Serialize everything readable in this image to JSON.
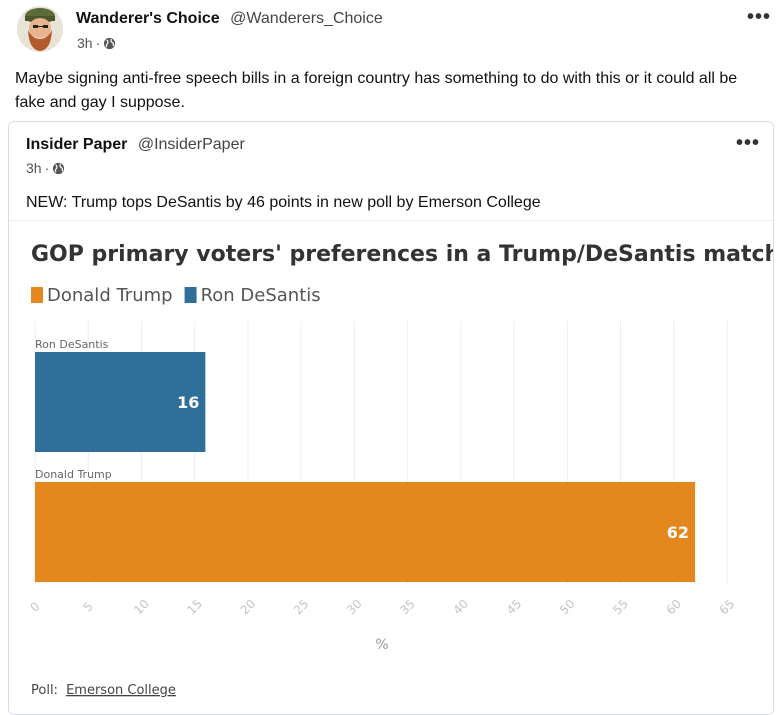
{
  "post": {
    "author_name": "Wanderer's Choice",
    "author_handle": "@Wanderers_Choice",
    "time": "3h",
    "separator": "·",
    "visibility_icon": "globe-icon",
    "more_label": "•••",
    "text": "Maybe signing anti-free speech bills in a foreign country has something to do with this or it could all be fake and gay I suppose."
  },
  "quote": {
    "author_name": "Insider Paper",
    "author_handle": "@InsiderPaper",
    "time": "3h",
    "separator": "·",
    "visibility_icon": "globe-icon",
    "more_label": "•••",
    "text": "NEW: Trump tops DeSantis by 46 points in new poll by Emerson College"
  },
  "chart_data": {
    "type": "bar",
    "orientation": "horizontal",
    "title": "GOP primary voters' preferences in a Trump/DeSantis match-up",
    "legend": [
      {
        "name": "Donald Trump",
        "color": "#e4881e"
      },
      {
        "name": "Ron DeSantis",
        "color": "#2f6f9a"
      }
    ],
    "legend_position": "top-left",
    "categories": [
      "Ron DeSantis",
      "Donald Trump"
    ],
    "values": [
      16,
      62
    ],
    "value_labels": [
      "16",
      "62"
    ],
    "colors": [
      "#2f6f9a",
      "#e4881e"
    ],
    "xlabel": "%",
    "xlim": [
      0,
      65
    ],
    "xticks": [
      "0",
      "5",
      "10",
      "15",
      "20",
      "25",
      "30",
      "35",
      "40",
      "45",
      "50",
      "55",
      "60",
      "65"
    ],
    "grid": true,
    "source_label": "Poll:",
    "source_name": "Emerson College"
  }
}
